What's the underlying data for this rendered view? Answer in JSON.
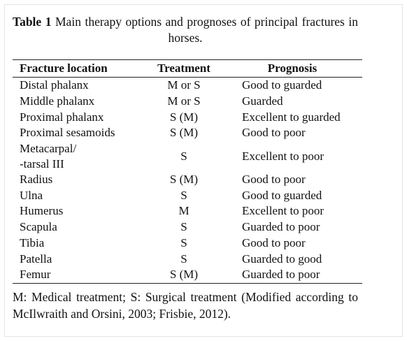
{
  "table_caption": {
    "label": "Table 1",
    "text": "Main therapy options and prognoses of principal fractures in horses."
  },
  "table": {
    "header": [
      "Fracture location",
      "Treatment",
      "Prognosis"
    ],
    "rows": [
      [
        "Distal phalanx",
        "M or S",
        "Good to guarded"
      ],
      [
        "Middle phalanx",
        "M or S",
        "Guarded"
      ],
      [
        "Proximal phalanx",
        "S (M)",
        "Excellent to guarded"
      ],
      [
        "Proximal sesamoids",
        "S (M)",
        "Good to poor"
      ],
      [
        "Metacarpal/\n-tarsal III",
        "S",
        "Excellent to poor"
      ],
      [
        "Radius",
        "S (M)",
        "Good to poor"
      ],
      [
        "Ulna",
        "S",
        "Good to guarded"
      ],
      [
        "Humerus",
        "M",
        "Excellent to poor"
      ],
      [
        "Scapula",
        "S",
        "Guarded to poor"
      ],
      [
        "Tibia",
        "S",
        "Good to poor"
      ],
      [
        "Patella",
        "S",
        "Guarded to good"
      ],
      [
        "Femur",
        "S (M)",
        "Guarded to poor"
      ]
    ]
  },
  "footnote": "M: Medical treatment; S: Surgical treatment (Modified according to McIlwraith and Orsini, 2003; Frisbie, 2012)."
}
